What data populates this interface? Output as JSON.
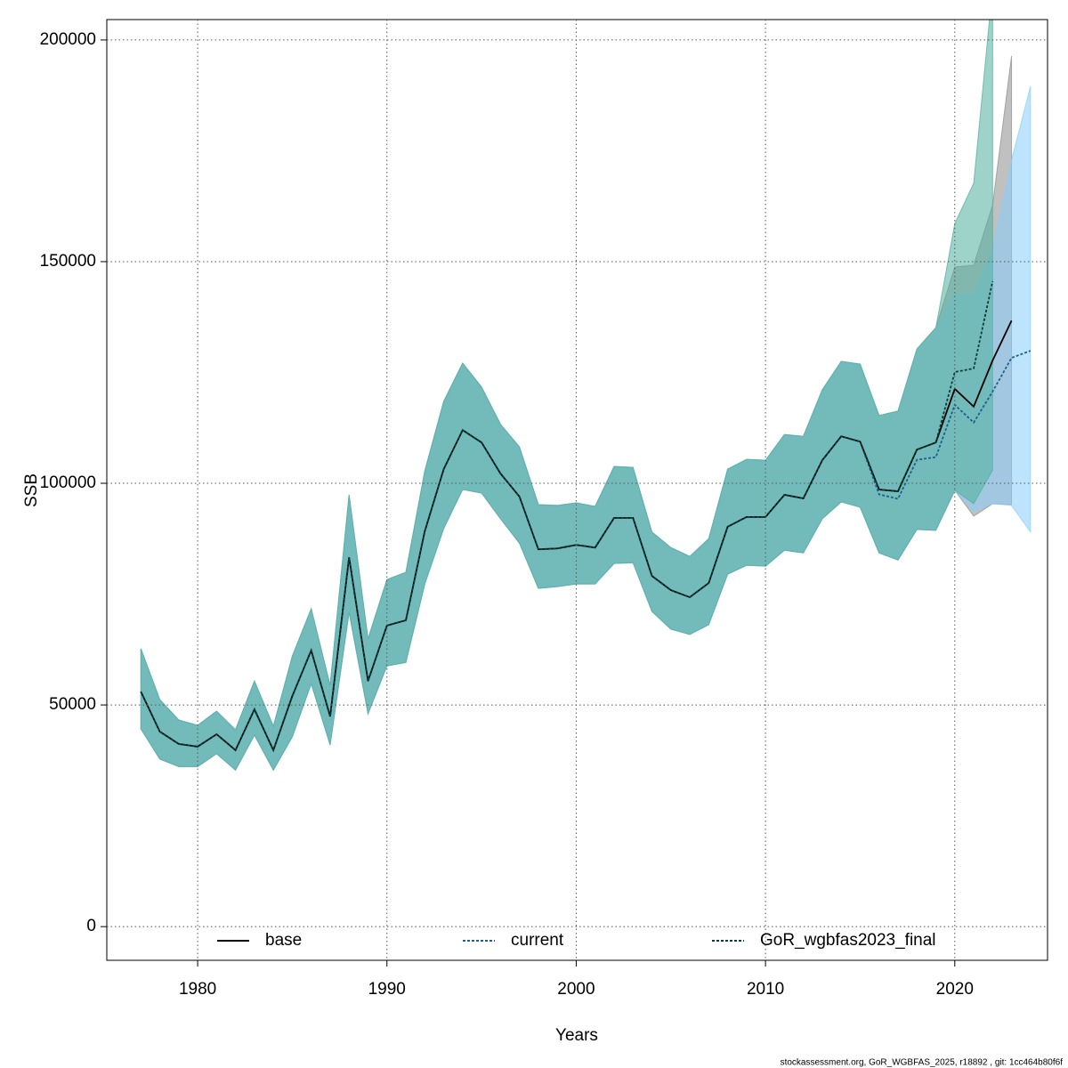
{
  "chart_data": {
    "type": "line",
    "x_label": "Years",
    "y_label": "SSB",
    "footer": "stockassessment.org, GoR_WGBFAS_2025, r18892 , git: 1cc464b80f6f",
    "x": [
      1977,
      1978,
      1979,
      1980,
      1981,
      1982,
      1983,
      1984,
      1985,
      1986,
      1987,
      1988,
      1989,
      1990,
      1991,
      1992,
      1993,
      1994,
      1995,
      1996,
      1997,
      1998,
      1999,
      2000,
      2001,
      2002,
      2003,
      2004,
      2005,
      2006,
      2007,
      2008,
      2009,
      2010,
      2011,
      2012,
      2013,
      2014,
      2015,
      2016,
      2017,
      2018,
      2019,
      2020,
      2021,
      2022,
      2023,
      2024
    ],
    "xlim": [
      1975.2,
      2024.9
    ],
    "ylim": [
      -7600,
      204600
    ],
    "xticks": [
      1980,
      1990,
      2000,
      2010,
      2020
    ],
    "yticks": [
      0,
      50000,
      100000,
      150000,
      200000
    ],
    "grid": true,
    "series": [
      {
        "name": "base",
        "color": "#000000",
        "band_color": "#8c8c8c",
        "dash": "solid",
        "values": [
          53000,
          44000,
          41200,
          40600,
          43400,
          39800,
          49000,
          39800,
          52000,
          62300,
          47400,
          83300,
          55400,
          67900,
          69100,
          89200,
          103200,
          112000,
          109200,
          102200,
          97000,
          85100,
          85300,
          86100,
          85500,
          92200,
          92200,
          79100,
          75900,
          74300,
          77500,
          90200,
          92400,
          92400,
          97400,
          96600,
          105200,
          110600,
          109400,
          98600,
          98200,
          107600,
          109200,
          121300,
          117300,
          127700,
          136700,
          null
        ],
        "upper": [
          62700,
          51200,
          46600,
          45400,
          48600,
          44400,
          55400,
          45200,
          61000,
          71700,
          54400,
          97400,
          64900,
          78300,
          79900,
          102800,
          118500,
          127100,
          121700,
          113300,
          108200,
          95200,
          95000,
          95600,
          94800,
          103800,
          103600,
          89000,
          85500,
          83500,
          87500,
          103200,
          105400,
          105200,
          111000,
          110600,
          121100,
          127500,
          126900,
          115300,
          116300,
          130300,
          135100,
          148800,
          149200,
          162800,
          196400,
          null
        ],
        "lower": [
          44600,
          37800,
          36100,
          36100,
          39000,
          35300,
          43200,
          35300,
          42800,
          54800,
          41000,
          70900,
          48000,
          58800,
          59600,
          77300,
          89800,
          98600,
          97800,
          92000,
          86500,
          76300,
          76700,
          77300,
          77300,
          81900,
          82100,
          71100,
          67100,
          65900,
          68100,
          79500,
          81500,
          81300,
          84900,
          84300,
          92000,
          95800,
          94600,
          84300,
          82700,
          89600,
          89400,
          98400,
          92600,
          95400,
          95200,
          null
        ]
      },
      {
        "name": "current",
        "color": "#1f5f8b",
        "band_color": "#87cefa",
        "dash": "dotted",
        "values": [
          53000,
          44000,
          41200,
          40600,
          43400,
          39800,
          49000,
          39800,
          52000,
          62300,
          47400,
          83300,
          55400,
          67900,
          69100,
          89200,
          103200,
          112000,
          109200,
          102200,
          97000,
          85100,
          85300,
          86100,
          85500,
          92200,
          92200,
          79100,
          75900,
          74300,
          77500,
          90200,
          92400,
          92400,
          97400,
          96600,
          105200,
          110600,
          109400,
          97500,
          96500,
          105300,
          105900,
          117700,
          113700,
          120700,
          128300,
          129900
        ],
        "upper": [
          62700,
          51200,
          46600,
          45400,
          48600,
          44400,
          55400,
          45200,
          61000,
          71700,
          54400,
          97400,
          64900,
          78300,
          79900,
          102800,
          118500,
          127100,
          121700,
          113300,
          108200,
          95200,
          95000,
          95600,
          94800,
          103800,
          103600,
          89000,
          85500,
          83500,
          87500,
          103200,
          105400,
          105200,
          111000,
          110600,
          121100,
          127500,
          126900,
          115300,
          116300,
          130300,
          135100,
          142800,
          142800,
          152800,
          172900,
          189600
        ],
        "lower": [
          44600,
          37800,
          36100,
          36100,
          39000,
          35300,
          43200,
          35300,
          42800,
          54800,
          41000,
          70900,
          48000,
          58800,
          59600,
          77300,
          89800,
          98600,
          97800,
          92000,
          86500,
          76300,
          76700,
          77300,
          77300,
          81900,
          82100,
          71100,
          67100,
          65900,
          68100,
          79500,
          81500,
          81300,
          84900,
          84300,
          92000,
          95800,
          94600,
          84300,
          82700,
          89600,
          89400,
          98400,
          93600,
          95400,
          95000,
          89000
        ]
      },
      {
        "name": "GoR_wgbfas2023_final",
        "color": "#0a3d36",
        "band_color": "#4fae9c",
        "dash": "dotted",
        "values": [
          53000,
          44000,
          41200,
          40600,
          43400,
          39800,
          49000,
          39800,
          52000,
          62300,
          47400,
          83300,
          55400,
          67900,
          69100,
          89200,
          103200,
          112000,
          109200,
          102200,
          97000,
          85100,
          85300,
          86100,
          85500,
          92200,
          92200,
          79100,
          75900,
          74300,
          77500,
          90200,
          92400,
          92400,
          97400,
          96600,
          105200,
          110600,
          109400,
          98600,
          98200,
          107600,
          109200,
          125100,
          125900,
          145600,
          null,
          null
        ],
        "upper": [
          62700,
          51200,
          46600,
          45400,
          48600,
          44400,
          55400,
          45200,
          61000,
          71700,
          54400,
          97400,
          64900,
          78300,
          79900,
          102800,
          118500,
          127100,
          121700,
          113300,
          108200,
          95200,
          95000,
          95600,
          94800,
          103800,
          103600,
          89000,
          85500,
          83500,
          87500,
          103200,
          105400,
          105200,
          111000,
          110600,
          121100,
          127500,
          126900,
          115300,
          116300,
          130300,
          135100,
          158600,
          167700,
          212000,
          null,
          null
        ],
        "lower": [
          44600,
          37800,
          36100,
          36100,
          39000,
          35300,
          43200,
          35300,
          42800,
          54800,
          41000,
          70900,
          48000,
          58800,
          59600,
          77300,
          89800,
          98600,
          97800,
          92000,
          86500,
          76300,
          76700,
          77300,
          77300,
          81900,
          82100,
          71100,
          67100,
          65900,
          68100,
          79500,
          81500,
          81300,
          84900,
          84300,
          92000,
          95800,
          94600,
          84300,
          82700,
          89600,
          89400,
          98400,
          95400,
          103000,
          null,
          null
        ]
      }
    ]
  }
}
